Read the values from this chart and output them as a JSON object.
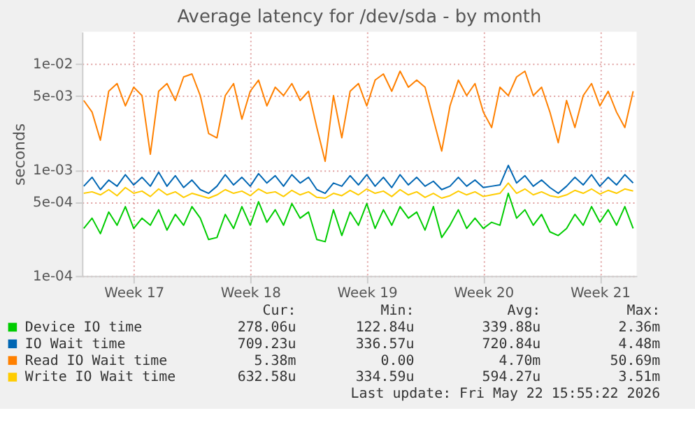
{
  "chart_data": {
    "type": "line",
    "title": "Average latency for /dev/sda - by month",
    "ylabel": "seconds",
    "log": "y",
    "x": [
      "2026-04-20T12:00",
      "2026-04-21T00:00",
      "2026-04-21T12:00",
      "2026-04-22T00:00",
      "2026-04-22T12:00",
      "2026-04-23T00:00",
      "2026-04-23T12:00",
      "2026-04-24T00:00",
      "2026-04-24T12:00",
      "2026-04-25T00:00",
      "2026-04-25T12:00",
      "2026-04-26T00:00",
      "2026-04-26T12:00",
      "2026-04-27T00:00",
      "2026-04-27T12:00",
      "2026-04-28T00:00",
      "2026-04-28T12:00",
      "2026-04-29T00:00",
      "2026-04-29T12:00",
      "2026-04-30T00:00",
      "2026-04-30T12:00",
      "2026-05-01T00:00",
      "2026-05-01T12:00",
      "2026-05-02T00:00",
      "2026-05-02T12:00",
      "2026-05-03T00:00",
      "2026-05-03T12:00",
      "2026-05-04T00:00",
      "2026-05-04T12:00",
      "2026-05-05T00:00",
      "2026-05-05T12:00",
      "2026-05-06T00:00",
      "2026-05-06T12:00",
      "2026-05-07T00:00",
      "2026-05-07T12:00",
      "2026-05-08T00:00",
      "2026-05-08T12:00",
      "2026-05-09T00:00",
      "2026-05-09T12:00",
      "2026-05-10T00:00",
      "2026-05-10T12:00",
      "2026-05-11T00:00",
      "2026-05-11T12:00",
      "2026-05-12T00:00",
      "2026-05-12T12:00",
      "2026-05-13T00:00",
      "2026-05-13T12:00",
      "2026-05-14T00:00",
      "2026-05-14T12:00",
      "2026-05-15T00:00",
      "2026-05-15T12:00",
      "2026-05-16T00:00",
      "2026-05-16T12:00",
      "2026-05-17T00:00",
      "2026-05-17T12:00",
      "2026-05-18T00:00",
      "2026-05-18T12:00",
      "2026-05-19T00:00",
      "2026-05-19T12:00",
      "2026-05-20T00:00",
      "2026-05-20T12:00",
      "2026-05-21T00:00",
      "2026-05-21T12:00",
      "2026-05-22T00:00",
      "2026-05-22T12:00",
      "2026-05-23T00:00",
      "2026-05-23T12:00"
    ],
    "xlim": [
      "2026-04-20T09:30",
      "2026-05-23T17:00"
    ],
    "xticks": [
      {
        "value": "2026-04-23T12:00",
        "label": "Week 17"
      },
      {
        "value": "2026-04-30T12:00",
        "label": "Week 18"
      },
      {
        "value": "2026-05-07T12:00",
        "label": "Week 19"
      },
      {
        "value": "2026-05-14T12:00",
        "label": "Week 20"
      },
      {
        "value": "2026-05-21T12:00",
        "label": "Week 21"
      }
    ],
    "ylim": [
      0.0001,
      0.02
    ],
    "yticks": [
      {
        "value": 0.01,
        "label": "1e-02"
      },
      {
        "value": 0.005,
        "label": "5e-03"
      },
      {
        "value": 0.001,
        "label": "1e-03"
      },
      {
        "value": 0.0005,
        "label": "5e-04"
      },
      {
        "value": 0.0001,
        "label": "1e-04"
      }
    ],
    "grid": true,
    "legend": "bottom",
    "line_style": "solid",
    "marker": "none",
    "series": [
      {
        "name": "Device IO time",
        "color": "#00cc00",
        "values": [
          0.00028,
          0.00035,
          0.00025,
          0.0004,
          0.0003,
          0.00045,
          0.00028,
          0.00035,
          0.0003,
          0.00042,
          0.00027,
          0.00038,
          0.0003,
          0.00045,
          0.00035,
          0.00022,
          0.00023,
          0.00038,
          0.00028,
          0.00045,
          0.0003,
          0.0005,
          0.00032,
          0.00042,
          0.0003,
          0.00048,
          0.00035,
          0.0004,
          0.00022,
          0.00021,
          0.00042,
          0.00024,
          0.0004,
          0.0003,
          0.00048,
          0.00028,
          0.00042,
          0.0003,
          0.00045,
          0.00035,
          0.0004,
          0.00027,
          0.00045,
          0.00023,
          0.0003,
          0.00042,
          0.00028,
          0.00035,
          0.00028,
          0.00032,
          0.0003,
          0.0006,
          0.00035,
          0.00042,
          0.0003,
          0.00038,
          0.00026,
          0.00024,
          0.00028,
          0.00038,
          0.0003,
          0.00045,
          0.00032,
          0.00042,
          0.0003,
          0.00045,
          0.00028
        ]
      },
      {
        "name": "IO Wait time",
        "color": "#0066b3",
        "values": [
          0.0007,
          0.00085,
          0.00065,
          0.0008,
          0.0007,
          0.0009,
          0.00072,
          0.00085,
          0.0007,
          0.00095,
          0.0007,
          0.00088,
          0.00068,
          0.0008,
          0.00065,
          0.0006,
          0.0007,
          0.0009,
          0.00072,
          0.00085,
          0.0007,
          0.00092,
          0.00075,
          0.00088,
          0.0007,
          0.0009,
          0.00075,
          0.00085,
          0.00065,
          0.0006,
          0.00075,
          0.0007,
          0.00088,
          0.00072,
          0.0009,
          0.0007,
          0.00085,
          0.00068,
          0.0009,
          0.00072,
          0.00085,
          0.0007,
          0.00078,
          0.00065,
          0.0007,
          0.00085,
          0.0007,
          0.0008,
          0.00068,
          0.0007,
          0.00072,
          0.0011,
          0.00075,
          0.00088,
          0.0007,
          0.0008,
          0.00068,
          0.0006,
          0.0007,
          0.00085,
          0.00072,
          0.0009,
          0.0007,
          0.00085,
          0.00072,
          0.0009,
          0.00075
        ]
      },
      {
        "name": "Read IO Wait time",
        "color": "#ff8000",
        "values": [
          0.0045,
          0.0035,
          0.0019,
          0.0055,
          0.0065,
          0.004,
          0.006,
          0.005,
          0.0014,
          0.0055,
          0.0065,
          0.0045,
          0.0075,
          0.008,
          0.005,
          0.0022,
          0.002,
          0.005,
          0.0065,
          0.003,
          0.0055,
          0.007,
          0.004,
          0.006,
          0.005,
          0.0065,
          0.0045,
          0.0055,
          0.0025,
          0.0012,
          0.005,
          0.002,
          0.0055,
          0.0065,
          0.004,
          0.007,
          0.008,
          0.0055,
          0.0085,
          0.006,
          0.007,
          0.006,
          0.003,
          0.0015,
          0.004,
          0.007,
          0.005,
          0.0065,
          0.0035,
          0.0025,
          0.006,
          0.005,
          0.0075,
          0.0085,
          0.005,
          0.006,
          0.0035,
          0.0018,
          0.0045,
          0.0025,
          0.005,
          0.0065,
          0.004,
          0.0055,
          0.0035,
          0.0025,
          0.0055
        ]
      },
      {
        "name": "Write IO Wait time",
        "color": "#ffcc00",
        "values": [
          0.0006,
          0.00062,
          0.00058,
          0.00065,
          0.00057,
          0.00068,
          0.0006,
          0.00063,
          0.00056,
          0.00066,
          0.00058,
          0.00062,
          0.00055,
          0.0006,
          0.00057,
          0.00054,
          0.00058,
          0.00065,
          0.0006,
          0.00063,
          0.00057,
          0.00066,
          0.0006,
          0.00062,
          0.00056,
          0.00064,
          0.00058,
          0.00062,
          0.00055,
          0.00054,
          0.0006,
          0.00057,
          0.00064,
          0.00058,
          0.00066,
          0.0006,
          0.00063,
          0.00056,
          0.00065,
          0.00058,
          0.00062,
          0.00055,
          0.0006,
          0.00054,
          0.00057,
          0.00063,
          0.00058,
          0.00062,
          0.00056,
          0.00058,
          0.0006,
          0.00075,
          0.0006,
          0.00066,
          0.00058,
          0.00062,
          0.00057,
          0.00055,
          0.00058,
          0.00064,
          0.0006,
          0.00066,
          0.00059,
          0.00064,
          0.0006,
          0.00066,
          0.00063
        ]
      }
    ],
    "annotations": [
      "Cur:",
      "Min:",
      "Avg:",
      "Max:",
      "278.06u",
      "122.84u",
      "339.88u",
      "2.36m",
      "709.23u",
      "336.57u",
      "720.84u",
      "4.48m",
      "5.38m",
      "0.00",
      "4.70m",
      "50.69m",
      "632.58u",
      "334.59u",
      "594.27u",
      "3.51m",
      "Last update: Fri May 22 15:55:22 2026"
    ]
  }
}
